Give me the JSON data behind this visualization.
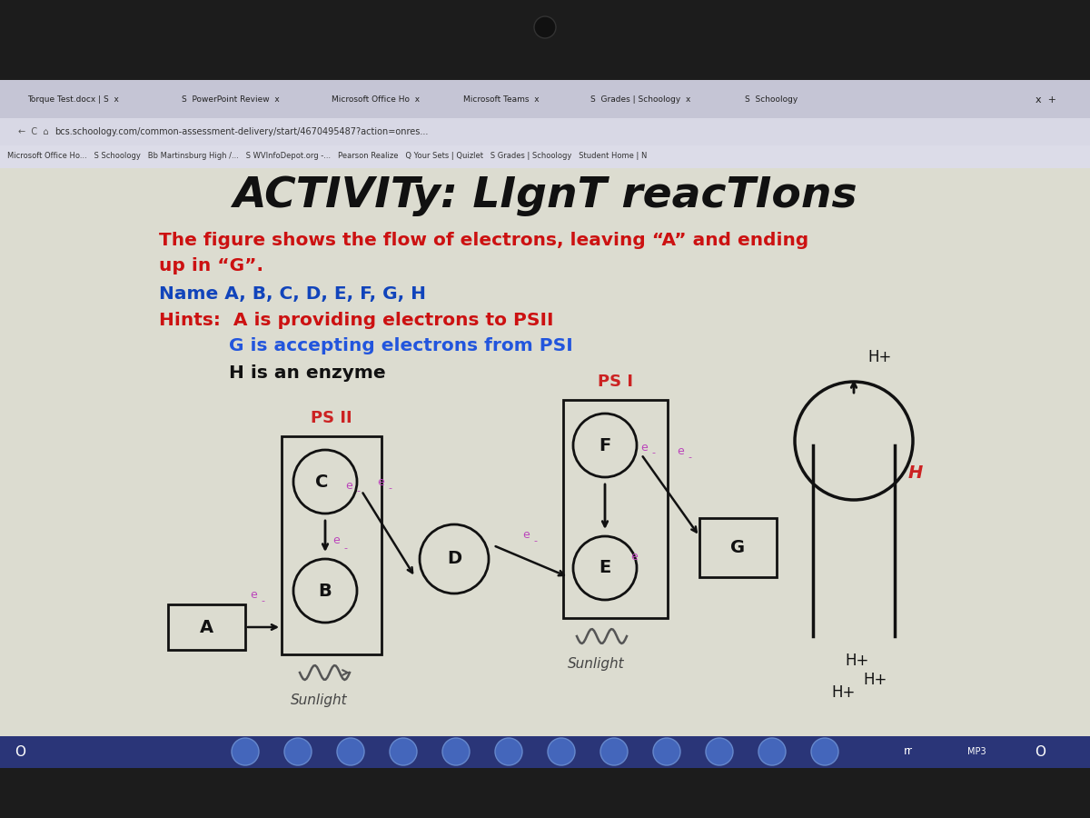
{
  "outer_bg": "#1a1a1a",
  "screen_bg": "#dcdcd0",
  "tab_bar_bg": "#c8c8d8",
  "bookmark_bar_bg": "#dcdce8",
  "taskbar_bg": "#2a3578",
  "title": "ACTIVITy: LIgnT reacTIons",
  "title_color": "#111111",
  "title_fontsize": 32,
  "q_line1": "The figure shows the flow of electrons, leaving “A” and ending",
  "q_line2": "up in “G”.",
  "q_color": "#cc1111",
  "name_text": "Name A, B, C, D, E, F, G, H",
  "name_color": "#1144bb",
  "hints1": "Hints:  A is providing electrons to PSII",
  "hints2": "           G is accepting electrons from PSI",
  "hints3": "           H is an enzyme",
  "hints1_color": "#cc1111",
  "hints2_color": "#2255dd",
  "hints3_color": "#111111",
  "psii_label": "PS II",
  "psi_label": "PS I",
  "label_red_color": "#cc2222",
  "electron_color": "#bb44bb",
  "box_color": "#111111",
  "arrow_color": "#111111",
  "text_color": "#111111",
  "sunlight_color": "#444444"
}
